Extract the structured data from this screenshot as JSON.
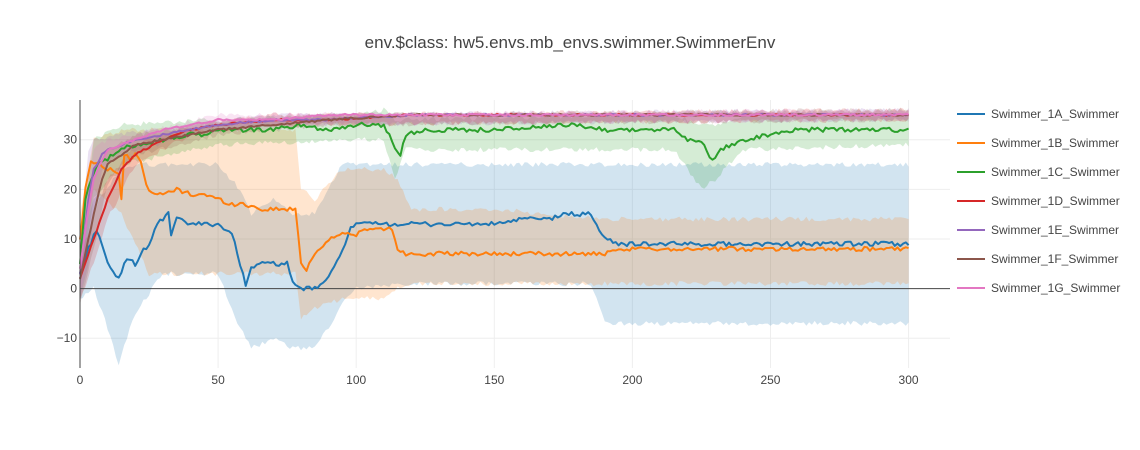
{
  "chart_data": {
    "type": "line",
    "title": "env.$class: hw5.envs.mb_envs.swimmer.SwimmerEnv",
    "xlabel": "",
    "ylabel": "",
    "xlim": [
      0,
      315
    ],
    "ylim": [
      -16,
      38
    ],
    "x_ticks": [
      "0",
      "50",
      "100",
      "150",
      "200",
      "250",
      "300"
    ],
    "y_ticks": [
      "−10",
      "0",
      "10",
      "20",
      "30"
    ],
    "grid": true,
    "legend_position": "right",
    "series": [
      {
        "name": "Swimmer_1A_Swimmer",
        "color": "#1f77b4",
        "points": [
          [
            0,
            3
          ],
          [
            3,
            8
          ],
          [
            6,
            12
          ],
          [
            8,
            9
          ],
          [
            10,
            5
          ],
          [
            12,
            3
          ],
          [
            14,
            2
          ],
          [
            16,
            5
          ],
          [
            18,
            6
          ],
          [
            20,
            5
          ],
          [
            22,
            7
          ],
          [
            25,
            9
          ],
          [
            28,
            13
          ],
          [
            30,
            14
          ],
          [
            32,
            15
          ],
          [
            33,
            11
          ],
          [
            35,
            14
          ],
          [
            40,
            13
          ],
          [
            45,
            13
          ],
          [
            50,
            13
          ],
          [
            55,
            11
          ],
          [
            58,
            5
          ],
          [
            60,
            1
          ],
          [
            62,
            4
          ],
          [
            64,
            5
          ],
          [
            70,
            5
          ],
          [
            75,
            5
          ],
          [
            77,
            1
          ],
          [
            80,
            0
          ],
          [
            85,
            0
          ],
          [
            90,
            2
          ],
          [
            95,
            8
          ],
          [
            98,
            12
          ],
          [
            100,
            13
          ],
          [
            105,
            13
          ],
          [
            110,
            13
          ],
          [
            115,
            13
          ],
          [
            120,
            13
          ],
          [
            130,
            13
          ],
          [
            140,
            13
          ],
          [
            150,
            13
          ],
          [
            160,
            14
          ],
          [
            170,
            14
          ],
          [
            175,
            15
          ],
          [
            180,
            15
          ],
          [
            185,
            15
          ],
          [
            187,
            13
          ],
          [
            190,
            10
          ],
          [
            195,
            9
          ],
          [
            200,
            9
          ],
          [
            220,
            9
          ],
          [
            240,
            9
          ],
          [
            260,
            9
          ],
          [
            280,
            9
          ],
          [
            300,
            9
          ]
        ],
        "band": [
          [
            0,
            -2,
            8
          ],
          [
            5,
            0,
            18
          ],
          [
            10,
            -8,
            20
          ],
          [
            14,
            -15,
            24
          ],
          [
            20,
            -5,
            25
          ],
          [
            30,
            3,
            25
          ],
          [
            50,
            3,
            25
          ],
          [
            58,
            -8,
            20
          ],
          [
            62,
            -12,
            15
          ],
          [
            70,
            -10,
            18
          ],
          [
            77,
            -12,
            15
          ],
          [
            85,
            -12,
            15
          ],
          [
            90,
            -8,
            20
          ],
          [
            95,
            -3,
            25
          ],
          [
            100,
            0,
            25
          ],
          [
            120,
            1,
            25
          ],
          [
            150,
            1,
            25
          ],
          [
            180,
            1,
            25
          ],
          [
            185,
            1,
            25
          ],
          [
            190,
            -7,
            25
          ],
          [
            200,
            -7,
            25
          ],
          [
            250,
            -7,
            25
          ],
          [
            300,
            -7,
            25
          ]
        ]
      },
      {
        "name": "Swimmer_1B_Swimmer",
        "color": "#ff7f0e",
        "points": [
          [
            0,
            10
          ],
          [
            2,
            20
          ],
          [
            4,
            26
          ],
          [
            6,
            25
          ],
          [
            8,
            25
          ],
          [
            10,
            24
          ],
          [
            12,
            24
          ],
          [
            14,
            23
          ],
          [
            15,
            18
          ],
          [
            16,
            27
          ],
          [
            18,
            26
          ],
          [
            20,
            27
          ],
          [
            22,
            26
          ],
          [
            24,
            21
          ],
          [
            26,
            19
          ],
          [
            30,
            19
          ],
          [
            35,
            20
          ],
          [
            40,
            19
          ],
          [
            45,
            19
          ],
          [
            50,
            18
          ],
          [
            55,
            17
          ],
          [
            60,
            17
          ],
          [
            65,
            16
          ],
          [
            70,
            16
          ],
          [
            75,
            16
          ],
          [
            78,
            16
          ],
          [
            80,
            5
          ],
          [
            82,
            4
          ],
          [
            85,
            7
          ],
          [
            90,
            10
          ],
          [
            95,
            11
          ],
          [
            100,
            11
          ],
          [
            105,
            12
          ],
          [
            110,
            12
          ],
          [
            113,
            12
          ],
          [
            115,
            8
          ],
          [
            118,
            7
          ],
          [
            125,
            7
          ],
          [
            135,
            7
          ],
          [
            150,
            7
          ],
          [
            170,
            7
          ],
          [
            190,
            7
          ],
          [
            200,
            8
          ],
          [
            220,
            8
          ],
          [
            240,
            8
          ],
          [
            260,
            8
          ],
          [
            280,
            8
          ],
          [
            300,
            8
          ]
        ],
        "band": [
          [
            0,
            5,
            15
          ],
          [
            5,
            20,
            30
          ],
          [
            15,
            15,
            32
          ],
          [
            25,
            3,
            32
          ],
          [
            50,
            3,
            32
          ],
          [
            70,
            3,
            32
          ],
          [
            78,
            3,
            32
          ],
          [
            80,
            -6,
            20
          ],
          [
            85,
            -4,
            18
          ],
          [
            95,
            -2,
            24
          ],
          [
            110,
            -2,
            24
          ],
          [
            115,
            0,
            22
          ],
          [
            120,
            1,
            16
          ],
          [
            150,
            1,
            16
          ],
          [
            190,
            1,
            14
          ],
          [
            200,
            1,
            14
          ],
          [
            250,
            1,
            14
          ],
          [
            300,
            1,
            14
          ]
        ]
      },
      {
        "name": "Swimmer_1C_Swimmer",
        "color": "#2ca02c",
        "points": [
          [
            0,
            5
          ],
          [
            2,
            18
          ],
          [
            4,
            22
          ],
          [
            6,
            25
          ],
          [
            8,
            26
          ],
          [
            10,
            26
          ],
          [
            12,
            27
          ],
          [
            15,
            28
          ],
          [
            20,
            29
          ],
          [
            30,
            30
          ],
          [
            40,
            31
          ],
          [
            45,
            31
          ],
          [
            50,
            32
          ],
          [
            60,
            32
          ],
          [
            70,
            32
          ],
          [
            80,
            33
          ],
          [
            90,
            32
          ],
          [
            100,
            33
          ],
          [
            105,
            33
          ],
          [
            110,
            33
          ],
          [
            112,
            31
          ],
          [
            114,
            28
          ],
          [
            116,
            27
          ],
          [
            118,
            31
          ],
          [
            125,
            32
          ],
          [
            150,
            32
          ],
          [
            180,
            33
          ],
          [
            190,
            32
          ],
          [
            200,
            32
          ],
          [
            210,
            32
          ],
          [
            215,
            32
          ],
          [
            220,
            30
          ],
          [
            225,
            30
          ],
          [
            228,
            26
          ],
          [
            230,
            26
          ],
          [
            232,
            28
          ],
          [
            240,
            30
          ],
          [
            250,
            31
          ],
          [
            260,
            32
          ],
          [
            280,
            32
          ],
          [
            300,
            32
          ]
        ],
        "band": [
          [
            0,
            0,
            10
          ],
          [
            5,
            18,
            30
          ],
          [
            15,
            25,
            33
          ],
          [
            50,
            29,
            34
          ],
          [
            100,
            30,
            35
          ],
          [
            110,
            30,
            36
          ],
          [
            114,
            22,
            34
          ],
          [
            118,
            28,
            34
          ],
          [
            200,
            28,
            35
          ],
          [
            215,
            28,
            35
          ],
          [
            225,
            20,
            33
          ],
          [
            230,
            22,
            33
          ],
          [
            240,
            28,
            35
          ],
          [
            300,
            29,
            35
          ]
        ]
      },
      {
        "name": "Swimmer_1D_Swimmer",
        "color": "#d62728",
        "points": [
          [
            0,
            2
          ],
          [
            5,
            10
          ],
          [
            10,
            18
          ],
          [
            15,
            24
          ],
          [
            20,
            27
          ],
          [
            30,
            30
          ],
          [
            40,
            32
          ],
          [
            50,
            33
          ],
          [
            70,
            34
          ],
          [
            90,
            34
          ],
          [
            120,
            35
          ],
          [
            150,
            35
          ],
          [
            200,
            35
          ],
          [
            250,
            35
          ],
          [
            300,
            35
          ]
        ],
        "band": [
          [
            0,
            -2,
            6
          ],
          [
            5,
            5,
            15
          ],
          [
            10,
            14,
            22
          ],
          [
            20,
            25,
            29
          ],
          [
            40,
            31,
            33
          ],
          [
            70,
            33,
            35
          ],
          [
            300,
            34,
            36
          ]
        ]
      },
      {
        "name": "Swimmer_1E_Swimmer",
        "color": "#9467bd",
        "points": [
          [
            0,
            3
          ],
          [
            3,
            18
          ],
          [
            5,
            24
          ],
          [
            8,
            27
          ],
          [
            10,
            28
          ],
          [
            15,
            29
          ],
          [
            20,
            30
          ],
          [
            30,
            31
          ],
          [
            40,
            32
          ],
          [
            50,
            33
          ],
          [
            70,
            34
          ],
          [
            90,
            34
          ],
          [
            120,
            35
          ],
          [
            150,
            35
          ],
          [
            200,
            35
          ],
          [
            250,
            35
          ],
          [
            300,
            35
          ]
        ],
        "band": [
          [
            0,
            -2,
            8
          ],
          [
            3,
            5,
            28
          ],
          [
            5,
            15,
            30
          ],
          [
            8,
            24,
            30
          ],
          [
            15,
            27,
            31
          ],
          [
            40,
            31,
            33
          ],
          [
            70,
            33,
            35
          ],
          [
            300,
            34,
            36
          ]
        ]
      },
      {
        "name": "Swimmer_1F_Swimmer",
        "color": "#8c564b",
        "points": [
          [
            0,
            2
          ],
          [
            5,
            15
          ],
          [
            8,
            22
          ],
          [
            10,
            25
          ],
          [
            15,
            27
          ],
          [
            20,
            29
          ],
          [
            30,
            30
          ],
          [
            40,
            31
          ],
          [
            50,
            32
          ],
          [
            70,
            33
          ],
          [
            90,
            34
          ],
          [
            120,
            35
          ],
          [
            150,
            35
          ],
          [
            200,
            35
          ],
          [
            250,
            35
          ],
          [
            300,
            35
          ]
        ],
        "band": [
          [
            0,
            -3,
            6
          ],
          [
            5,
            8,
            22
          ],
          [
            10,
            21,
            28
          ],
          [
            20,
            27,
            31
          ],
          [
            50,
            31,
            33
          ],
          [
            90,
            33,
            35
          ],
          [
            300,
            34,
            36
          ]
        ]
      },
      {
        "name": "Swimmer_1G_Swimmer",
        "color": "#e377c2",
        "points": [
          [
            0,
            4
          ],
          [
            3,
            16
          ],
          [
            5,
            22
          ],
          [
            8,
            26
          ],
          [
            10,
            28
          ],
          [
            15,
            29
          ],
          [
            20,
            30
          ],
          [
            30,
            32
          ],
          [
            40,
            33
          ],
          [
            50,
            34
          ],
          [
            70,
            34
          ],
          [
            90,
            35
          ],
          [
            120,
            35
          ],
          [
            150,
            35
          ],
          [
            200,
            35
          ],
          [
            250,
            35
          ],
          [
            300,
            35
          ]
        ],
        "band": [
          [
            0,
            -1,
            8
          ],
          [
            5,
            16,
            28
          ],
          [
            10,
            26,
            30
          ],
          [
            20,
            29,
            31
          ],
          [
            50,
            33,
            35
          ],
          [
            300,
            34,
            36
          ]
        ]
      }
    ]
  }
}
